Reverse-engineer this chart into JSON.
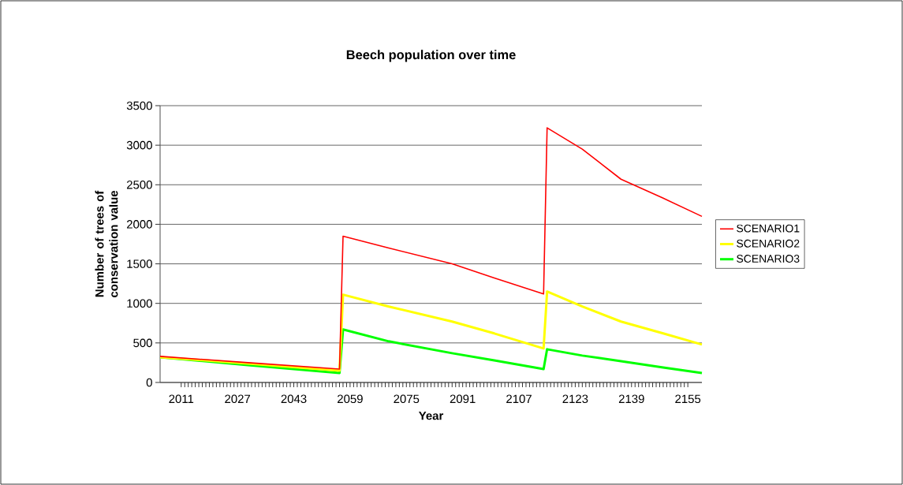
{
  "chart_data": {
    "type": "line",
    "title": "Beech population over time",
    "xlabel": "Year",
    "ylabel": "Number of trees of conservation value",
    "xlim": [
      2005,
      2159
    ],
    "xticks": [
      2011,
      2027,
      2043,
      2059,
      2075,
      2091,
      2107,
      2123,
      2139,
      2155
    ],
    "ylim": [
      0,
      3500
    ],
    "yticks": [
      0,
      500,
      1000,
      1500,
      2000,
      2500,
      3000,
      3500
    ],
    "grid": "y",
    "legend": "right",
    "marker": "none",
    "line_style": "solid",
    "x": [
      2005,
      2030,
      2056,
      2057,
      2070,
      2088,
      2100,
      2114,
      2115,
      2125,
      2136,
      2148,
      2159
    ],
    "series": [
      {
        "name": "SCENARIO1",
        "color": "#ff0000",
        "values": [
          330,
          250,
          170,
          1850,
          1700,
          1500,
          1320,
          1120,
          3220,
          2950,
          2570,
          2330,
          2100
        ]
      },
      {
        "name": "SCENARIO2",
        "color": "#ffff00",
        "values": [
          320,
          240,
          150,
          1110,
          960,
          770,
          620,
          430,
          1150,
          960,
          770,
          620,
          480
        ]
      },
      {
        "name": "SCENARIO3",
        "color": "#00ff00",
        "values": [
          320,
          220,
          120,
          670,
          520,
          370,
          280,
          170,
          420,
          340,
          270,
          190,
          120
        ]
      }
    ]
  }
}
